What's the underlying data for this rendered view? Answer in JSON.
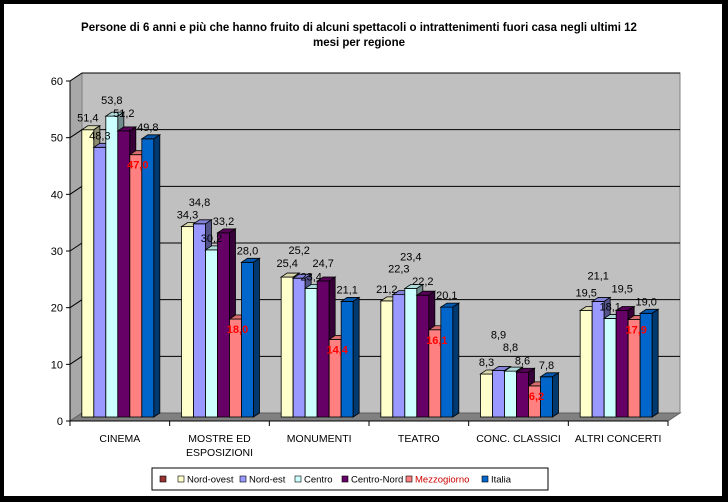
{
  "chart_data": {
    "type": "bar",
    "style": "3d-clustered-column",
    "title": "Persone di 6 anni e più che hanno fruito di alcuni spettacoli o intrattenimenti fuori casa negli ultimi 12 mesi per regione",
    "title_lines": [
      "Persone di 6 anni e più che hanno fruito di alcuni spettacoli o intrattenimenti fuori casa negli ultimi 12",
      "mesi per regione"
    ],
    "xlabel": "",
    "ylabel": "",
    "ylim": [
      0,
      60
    ],
    "yticks": [
      0,
      10,
      20,
      30,
      40,
      50,
      60
    ],
    "grid": true,
    "legend_position": "bottom",
    "categories": [
      [
        "CINEMA"
      ],
      [
        "MOSTRE ED",
        "ESPOSIZIONI"
      ],
      [
        "MONUMENTI"
      ],
      [
        "TEATRO"
      ],
      [
        "CONC. CLASSICI"
      ],
      [
        "ALTRI CONCERTI"
      ]
    ],
    "series": [
      {
        "name": "Nord-ovest",
        "color": "#FFFFCC",
        "values": [
          51.4,
          34.3,
          25.4,
          21.2,
          8.3,
          19.5
        ],
        "labels": [
          "51,4",
          "34,3",
          "25,4",
          "21,2",
          "8,3",
          "19,5"
        ],
        "label_red": false
      },
      {
        "name": "Nord-est",
        "color": "#9999FF",
        "values": [
          48.3,
          34.8,
          25.2,
          22.3,
          8.9,
          21.1
        ],
        "labels": [
          "48,3",
          "34,8",
          "25,2",
          "22,3",
          "8,9",
          "21,1"
        ],
        "label_red": false
      },
      {
        "name": "Centro",
        "color": "#CCFFFF",
        "values": [
          53.8,
          30.2,
          23.4,
          23.4,
          8.8,
          18.1
        ],
        "labels": [
          "53,8",
          "30,2",
          "23,4",
          "23,4",
          "8,8",
          "18,1"
        ],
        "label_red": false
      },
      {
        "name": "Centro-Nord",
        "color": "#660066",
        "values": [
          51.2,
          33.2,
          24.7,
          22.2,
          8.6,
          19.5
        ],
        "labels": [
          "51,2",
          "33,2",
          "24,7",
          "22,2",
          "8,6",
          "19,5"
        ],
        "label_red": false
      },
      {
        "name": "Mezzogiorno",
        "color": "#FF8080",
        "values": [
          47.0,
          18.0,
          14.4,
          16.1,
          6.2,
          17.9
        ],
        "labels": [
          "47,0",
          "18,0",
          "14,4",
          "16,1",
          "6,2",
          "17,9"
        ],
        "label_red": true
      },
      {
        "name": "Italia",
        "color": "#0066CC",
        "values": [
          49.8,
          28.0,
          21.1,
          20.1,
          7.8,
          19.0
        ],
        "labels": [
          "49,8",
          "28,0",
          "21,1",
          "20,1",
          "7,8",
          "19,0"
        ],
        "label_red": false
      }
    ],
    "legend_extra_marker_color": "#993333",
    "wall_color": "#C0C0C0",
    "floor_color": "#808080"
  }
}
